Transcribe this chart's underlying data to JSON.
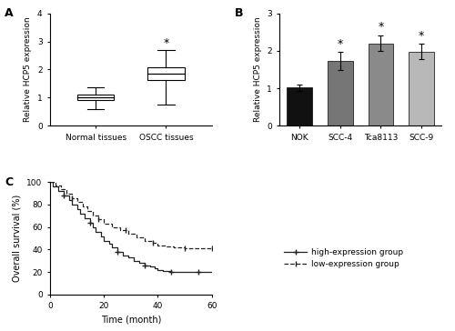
{
  "panel_A": {
    "label": "A",
    "ylabel": "Relative HCP5 expression",
    "xlabels": [
      "Normal tissues",
      "OSCC tissues"
    ],
    "ylim": [
      0,
      4
    ],
    "yticks": [
      0,
      1,
      2,
      3,
      4
    ],
    "box1": {
      "median": 1.0,
      "q1": 0.9,
      "q3": 1.1,
      "whisker_low": 0.58,
      "whisker_high": 1.38
    },
    "box2": {
      "median": 1.85,
      "q1": 1.62,
      "q3": 2.08,
      "whisker_low": 0.75,
      "whisker_high": 2.68,
      "star": true
    }
  },
  "panel_B": {
    "label": "B",
    "ylabel": "Relative HCP5 expression",
    "categories": [
      "NOK",
      "SCC-4",
      "Tca8113",
      "SCC-9"
    ],
    "values": [
      1.02,
      1.72,
      2.2,
      1.98
    ],
    "errors": [
      0.09,
      0.24,
      0.2,
      0.2
    ],
    "bar_colors": [
      "#111111",
      "#767676",
      "#8a8a8a",
      "#b8b8b8"
    ],
    "stars": [
      false,
      true,
      true,
      true
    ],
    "ylim": [
      0,
      3
    ],
    "yticks": [
      0,
      1,
      2,
      3
    ]
  },
  "panel_C": {
    "label": "C",
    "xlabel": "Time (month)",
    "ylabel": "Overall survival (%)",
    "xlim": [
      0,
      60
    ],
    "ylim": [
      0,
      100
    ],
    "xticks": [
      0,
      20,
      40,
      60
    ],
    "yticks": [
      0,
      20,
      40,
      60,
      80,
      100
    ],
    "high_expr": {
      "t": [
        0,
        1,
        3,
        5,
        7,
        8,
        10,
        11,
        13,
        15,
        16,
        17,
        19,
        20,
        22,
        23,
        25,
        27,
        29,
        31,
        33,
        35,
        37,
        39,
        40,
        42,
        45,
        48,
        50,
        55,
        60
      ],
      "s": [
        100,
        96,
        92,
        88,
        84,
        80,
        76,
        72,
        68,
        64,
        60,
        56,
        52,
        48,
        45,
        42,
        38,
        35,
        33,
        30,
        28,
        26,
        25,
        23,
        22,
        21,
        20,
        20,
        20,
        20,
        20
      ],
      "label": "high-expression group",
      "linestyle": "-"
    },
    "low_expr": {
      "t": [
        0,
        2,
        4,
        6,
        8,
        10,
        12,
        14,
        16,
        18,
        20,
        23,
        26,
        29,
        32,
        35,
        38,
        40,
        43,
        46,
        50,
        55,
        60
      ],
      "s": [
        100,
        97,
        94,
        90,
        86,
        82,
        78,
        74,
        70,
        67,
        63,
        60,
        57,
        54,
        51,
        48,
        46,
        44,
        43,
        42,
        41,
        41,
        41
      ],
      "label": "low-expression group",
      "linestyle": "--"
    },
    "line_color": "#222222"
  }
}
